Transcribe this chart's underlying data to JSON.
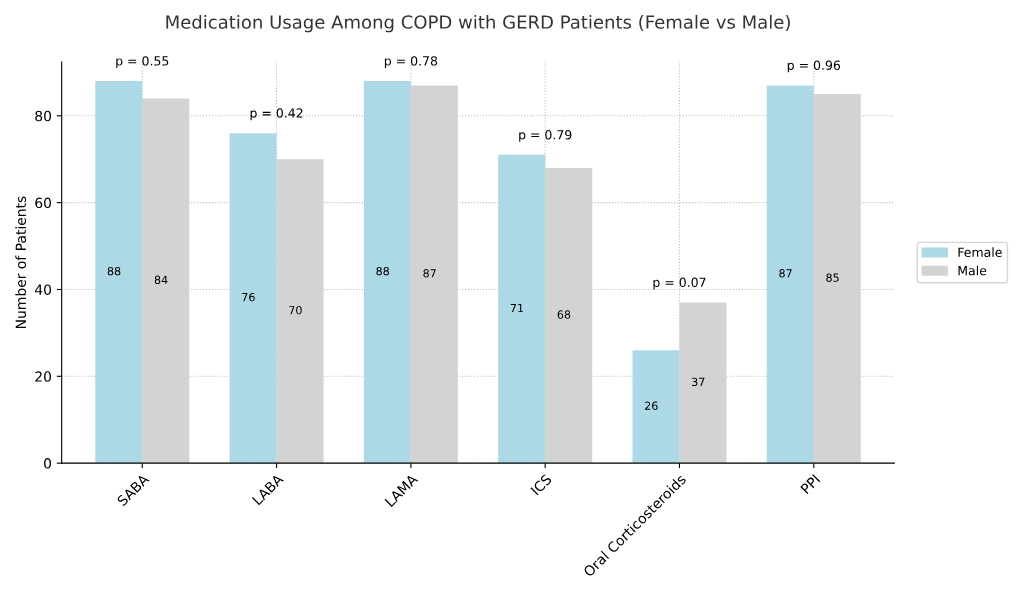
{
  "chart_data": {
    "type": "bar",
    "title": "Medication Usage Among COPD with GERD Patients (Female vs Male)",
    "ylabel": "Number of Patients",
    "categories": [
      "SABA",
      "LABA",
      "LAMA",
      "ICS",
      "Oral Corticosteroids",
      "PPI"
    ],
    "series": [
      {
        "name": "Female",
        "color": "#add8e6",
        "values": [
          88,
          76,
          88,
          71,
          26,
          87
        ]
      },
      {
        "name": "Male",
        "color": "#d3d3d3",
        "values": [
          84,
          70,
          87,
          68,
          37,
          85
        ]
      }
    ],
    "annotations": [
      "p = 0.55",
      "p = 0.42",
      "p = 0.78",
      "p = 0.79",
      "p = 0.07",
      "p = 0.96"
    ],
    "ylim": [
      0,
      92.4
    ],
    "yticks": [
      0,
      20,
      40,
      60,
      80
    ],
    "grid": true,
    "legend": "right",
    "data_labels": true
  }
}
